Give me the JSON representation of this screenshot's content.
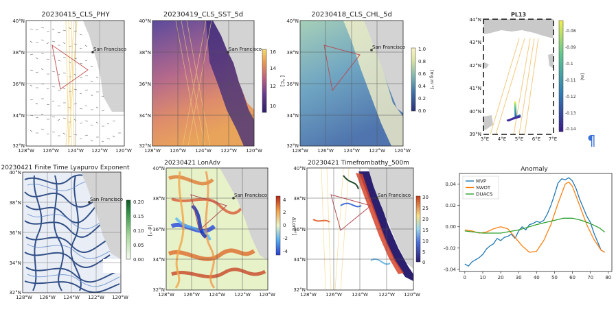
{
  "common": {
    "city_label": "San Francisco",
    "lon_ticks": [
      "128°W",
      "126°W",
      "124°W",
      "122°W",
      "120°W"
    ],
    "lat_ticks_top": [
      "40°N",
      "38°N",
      "36°N",
      "34°N",
      "32°N"
    ],
    "lat_ticks_bottom": [
      "40°N",
      "38°N",
      "36°N",
      "34°N",
      "32°N"
    ]
  },
  "panels": [
    {
      "title": "20230415_CLS_PHY",
      "type": "vectors"
    },
    {
      "title": "20230419_CLS_SST_5d",
      "type": "sst",
      "colorbar": {
        "ticks": [
          "16",
          "14",
          "12",
          "10"
        ],
        "label": "[ °C]"
      }
    },
    {
      "title": "20230418_CLS_CHL_5d",
      "type": "chl",
      "colorbar": {
        "ticks": [
          "1.0",
          "0.8",
          "0.6",
          "0.4",
          "0.2",
          "0.0"
        ],
        "label": "[mg.m⁻³]"
      }
    },
    {
      "title": "20230421 Finite Time Lyapurov Exponent",
      "type": "ftle",
      "colorbar": {
        "ticks": [
          "0.20",
          "0.15",
          "0.10",
          "0.05",
          "0.00"
        ],
        "label": "[d⁻¹]"
      }
    },
    {
      "title": "20230421 LonAdv",
      "type": "lonadv",
      "colorbar": {
        "ticks": [
          "4",
          "2",
          "0",
          "-2",
          "-4"
        ],
        "label": "ΔLon[°]"
      }
    },
    {
      "title": "20230421 Timefrombathy_500m",
      "type": "bathy",
      "colorbar": {
        "ticks": [
          "30",
          "25",
          "20",
          "15",
          "10",
          "5",
          "0"
        ],
        "label": ""
      }
    }
  ],
  "pl13": {
    "title": "PL13",
    "lat_ticks": [
      "44°N",
      "43°N",
      "42°N",
      "41°N",
      "40°N",
      "39°N"
    ],
    "lon_ticks": [
      "3°E",
      "4°E",
      "5°E",
      "6°E",
      "7°E"
    ],
    "colorbar": {
      "ticks": [
        "-0.08",
        "-0.09",
        "-0.1",
        "-0.11",
        "-0.12",
        "-0.13",
        "-0.14"
      ],
      "label": "[m]"
    }
  },
  "pilcrow": "¶",
  "chart_data": {
    "type": "line",
    "title": "Anomaly",
    "xlabel": "",
    "ylabel": "",
    "xlim": [
      -3,
      82
    ],
    "ylim": [
      -0.042,
      0.05
    ],
    "xticks": [
      0,
      10,
      20,
      30,
      40,
      50,
      60,
      70,
      80
    ],
    "yticks": [
      -0.04,
      -0.02,
      0.0,
      0.02,
      0.04
    ],
    "ytick_labels": [
      "-0.04",
      "-0.02",
      "0.00",
      "0.02",
      "0.04"
    ],
    "legend_position": "top-left",
    "series": [
      {
        "name": "MVP",
        "color": "#1f77b4",
        "x": [
          0,
          2,
          4,
          6,
          8,
          10,
          12,
          14,
          16,
          18,
          20,
          22,
          24,
          26,
          28,
          30,
          32,
          34,
          36,
          38,
          40,
          42,
          44,
          46,
          48,
          50,
          52,
          54,
          56,
          58,
          60,
          62,
          64,
          66,
          68,
          70,
          72,
          74,
          76,
          78
        ],
        "y": [
          -0.035,
          -0.037,
          -0.033,
          -0.031,
          -0.029,
          -0.026,
          -0.021,
          -0.018,
          -0.016,
          -0.011,
          -0.013,
          -0.01,
          -0.009,
          -0.007,
          -0.011,
          -0.004,
          0.0,
          -0.003,
          0.002,
          0.003,
          0.005,
          0.004,
          0.006,
          0.012,
          0.02,
          0.03,
          0.041,
          0.045,
          0.044,
          0.046,
          0.043,
          0.036,
          0.026,
          0.018,
          0.01,
          0.004,
          -0.006,
          -0.014,
          -0.022,
          -0.024
        ]
      },
      {
        "name": "SWOT",
        "color": "#ff7f0e",
        "x": [
          0,
          4,
          8,
          12,
          16,
          20,
          24,
          28,
          32,
          36,
          40,
          44,
          48,
          52,
          56,
          58,
          60,
          64,
          68,
          72,
          76,
          78
        ],
        "y": [
          -0.003,
          -0.004,
          -0.006,
          -0.005,
          -0.002,
          0.0,
          -0.002,
          -0.01,
          -0.018,
          -0.024,
          -0.023,
          -0.013,
          0.002,
          0.022,
          0.04,
          0.042,
          0.038,
          0.02,
          0.002,
          -0.012,
          -0.022,
          -0.024
        ]
      },
      {
        "name": "DUACS",
        "color": "#2ca02c",
        "x": [
          0,
          10,
          20,
          30,
          40,
          50,
          55,
          60,
          65,
          70,
          75,
          78
        ],
        "y": [
          -0.004,
          -0.006,
          -0.006,
          -0.003,
          0.002,
          0.006,
          0.008,
          0.008,
          0.006,
          0.003,
          -0.001,
          -0.005
        ]
      }
    ]
  }
}
